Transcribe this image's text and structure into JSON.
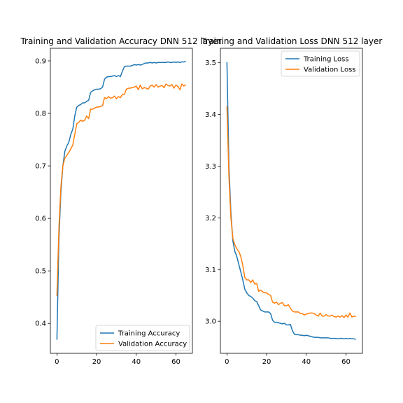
{
  "colors": {
    "training": "#1f77b4",
    "validation": "#ff7f0e"
  },
  "chart_data": [
    {
      "type": "line",
      "title": "Training and Validation Accuracy DNN 512 layer",
      "xlabel": "",
      "ylabel": "",
      "xlim": [
        -3.3,
        68.3
      ],
      "ylim": [
        0.343,
        0.924
      ],
      "xticks": [
        0,
        20,
        40,
        60
      ],
      "yticks": [
        0.4,
        0.5,
        0.6,
        0.7,
        0.8,
        0.9
      ],
      "grid": false,
      "legend": "lower right",
      "x": [
        0,
        1,
        2,
        3,
        4,
        5,
        6,
        7,
        8,
        9,
        10,
        11,
        12,
        13,
        14,
        15,
        16,
        17,
        18,
        19,
        20,
        21,
        22,
        23,
        24,
        25,
        26,
        27,
        28,
        29,
        30,
        31,
        32,
        33,
        34,
        35,
        36,
        37,
        38,
        39,
        40,
        41,
        42,
        43,
        44,
        45,
        46,
        47,
        48,
        49,
        50,
        51,
        52,
        53,
        54,
        55,
        56,
        57,
        58,
        59,
        60,
        61,
        62,
        63,
        64,
        65
      ],
      "series": [
        {
          "name": "Training Accuracy",
          "color": "#1f77b4",
          "values": [
            0.369,
            0.56,
            0.65,
            0.7,
            0.728,
            0.738,
            0.745,
            0.76,
            0.77,
            0.795,
            0.812,
            0.815,
            0.817,
            0.82,
            0.82,
            0.823,
            0.825,
            0.84,
            0.843,
            0.845,
            0.846,
            0.846,
            0.847,
            0.85,
            0.865,
            0.869,
            0.87,
            0.87,
            0.871,
            0.872,
            0.87,
            0.872,
            0.87,
            0.88,
            0.889,
            0.89,
            0.89,
            0.89,
            0.891,
            0.893,
            0.892,
            0.893,
            0.892,
            0.893,
            0.895,
            0.896,
            0.896,
            0.897,
            0.896,
            0.897,
            0.896,
            0.897,
            0.897,
            0.897,
            0.897,
            0.897,
            0.898,
            0.897,
            0.897,
            0.898,
            0.897,
            0.898,
            0.897,
            0.898,
            0.898,
            0.899
          ]
        },
        {
          "name": "Validation Accuracy",
          "color": "#ff7f0e",
          "values": [
            0.452,
            0.58,
            0.66,
            0.7,
            0.715,
            0.72,
            0.726,
            0.732,
            0.74,
            0.76,
            0.78,
            0.783,
            0.787,
            0.785,
            0.787,
            0.795,
            0.79,
            0.808,
            0.808,
            0.81,
            0.812,
            0.812,
            0.813,
            0.815,
            0.83,
            0.828,
            0.832,
            0.829,
            0.83,
            0.833,
            0.828,
            0.832,
            0.83,
            0.836,
            0.836,
            0.846,
            0.848,
            0.848,
            0.849,
            0.85,
            0.852,
            0.845,
            0.854,
            0.847,
            0.849,
            0.848,
            0.846,
            0.852,
            0.854,
            0.85,
            0.855,
            0.85,
            0.852,
            0.853,
            0.849,
            0.856,
            0.853,
            0.852,
            0.855,
            0.848,
            0.854,
            0.851,
            0.845,
            0.856,
            0.852,
            0.855
          ]
        }
      ]
    },
    {
      "type": "line",
      "title": "Training and Validation Loss DNN 512 layer",
      "xlabel": "",
      "ylabel": "",
      "xlim": [
        -3.3,
        68.3
      ],
      "ylim": [
        2.938,
        3.528
      ],
      "xticks": [
        0,
        20,
        40,
        60
      ],
      "yticks": [
        3.0,
        3.1,
        3.2,
        3.3,
        3.4,
        3.5
      ],
      "ytick_labels": [
        "3.0",
        "3.1",
        "3.2",
        "3.3",
        "3.4",
        "3.5"
      ],
      "grid": false,
      "legend": "upper right",
      "x": [
        0,
        1,
        2,
        3,
        4,
        5,
        6,
        7,
        8,
        9,
        10,
        11,
        12,
        13,
        14,
        15,
        16,
        17,
        18,
        19,
        20,
        21,
        22,
        23,
        24,
        25,
        26,
        27,
        28,
        29,
        30,
        31,
        32,
        33,
        34,
        35,
        36,
        37,
        38,
        39,
        40,
        41,
        42,
        43,
        44,
        45,
        46,
        47,
        48,
        49,
        50,
        51,
        52,
        53,
        54,
        55,
        56,
        57,
        58,
        59,
        60,
        61,
        62,
        63,
        64,
        65
      ],
      "series": [
        {
          "name": "Training Loss",
          "color": "#1f77b4",
          "values": [
            3.501,
            3.3,
            3.21,
            3.155,
            3.135,
            3.125,
            3.11,
            3.095,
            3.08,
            3.062,
            3.055,
            3.05,
            3.048,
            3.045,
            3.04,
            3.038,
            3.03,
            3.022,
            3.02,
            3.018,
            3.018,
            3.018,
            3.015,
            3.002,
            2.998,
            2.998,
            2.997,
            2.996,
            2.995,
            2.996,
            2.993,
            2.993,
            2.994,
            2.982,
            2.975,
            2.974,
            2.974,
            2.973,
            2.973,
            2.972,
            2.973,
            2.972,
            2.971,
            2.97,
            2.969,
            2.969,
            2.969,
            2.968,
            2.968,
            2.968,
            2.968,
            2.968,
            2.967,
            2.967,
            2.967,
            2.967,
            2.966,
            2.967,
            2.967,
            2.966,
            2.967,
            2.966,
            2.967,
            2.966,
            2.966,
            2.965
          ]
        },
        {
          "name": "Validation Loss",
          "color": "#ff7f0e",
          "values": [
            3.416,
            3.28,
            3.2,
            3.16,
            3.148,
            3.14,
            3.135,
            3.125,
            3.108,
            3.085,
            3.08,
            3.08,
            3.075,
            3.08,
            3.072,
            3.073,
            3.058,
            3.06,
            3.057,
            3.055,
            3.055,
            3.052,
            3.05,
            3.037,
            3.035,
            3.037,
            3.032,
            3.035,
            3.036,
            3.03,
            3.03,
            3.032,
            3.025,
            3.02,
            3.018,
            3.018,
            3.018,
            3.015,
            3.015,
            3.012,
            3.014,
            3.015,
            3.016,
            3.016,
            3.015,
            3.012,
            3.01,
            3.016,
            3.01,
            3.01,
            3.013,
            3.01,
            3.01,
            3.012,
            3.009,
            3.008,
            3.01,
            3.008,
            3.011,
            3.007,
            3.012,
            3.008,
            3.016,
            3.008,
            3.01,
            3.009
          ]
        }
      ]
    }
  ]
}
